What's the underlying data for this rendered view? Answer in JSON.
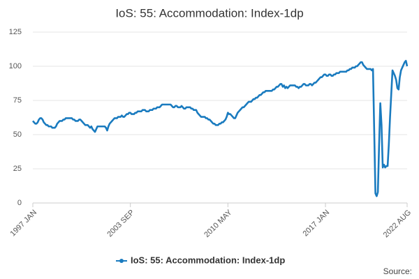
{
  "chart_data": {
    "type": "line",
    "title": "IoS: 55: Accommodation: Index-1dp",
    "source": "Source:",
    "categories": [
      "1997 JAN",
      null,
      null,
      null,
      null,
      null,
      null,
      null,
      null,
      null,
      null,
      null,
      null,
      null,
      null,
      null,
      null,
      null,
      null,
      null,
      null,
      null,
      null,
      null,
      null,
      null,
      null,
      null,
      null,
      null,
      null,
      null,
      null,
      null,
      null,
      null,
      null,
      null,
      null,
      null,
      null,
      null,
      null,
      null,
      null,
      null,
      null,
      null,
      null,
      null,
      null,
      null,
      null,
      null,
      null,
      null,
      null,
      null,
      null,
      null,
      null,
      null,
      null,
      null,
      null,
      null,
      null,
      null,
      null,
      null,
      null,
      null,
      null,
      null,
      null,
      null,
      null,
      null,
      null,
      null,
      "2003 SEP",
      null,
      null,
      null,
      null,
      null,
      null,
      null,
      null,
      null,
      null,
      null,
      null,
      null,
      null,
      null,
      null,
      null,
      null,
      null,
      null,
      null,
      null,
      null,
      null,
      null,
      null,
      null,
      null,
      null,
      null,
      null,
      null,
      null,
      null,
      null,
      null,
      null,
      null,
      null,
      null,
      null,
      null,
      null,
      null,
      null,
      null,
      null,
      null,
      null,
      null,
      null,
      null,
      null,
      null,
      null,
      null,
      null,
      null,
      null,
      null,
      null,
      null,
      null,
      null,
      null,
      null,
      null,
      null,
      null,
      null,
      null,
      null,
      null,
      null,
      null,
      null,
      null,
      null,
      null,
      "2010 MAY",
      null,
      null,
      null,
      null,
      null,
      null,
      null,
      null,
      null,
      null,
      null,
      null,
      null,
      null,
      null,
      null,
      null,
      null,
      null,
      null,
      null,
      null,
      null,
      null,
      null,
      null,
      null,
      null,
      null,
      null,
      null,
      null,
      null,
      null,
      null,
      null,
      null,
      null,
      null,
      null,
      null,
      null,
      null,
      null,
      null,
      null,
      null,
      null,
      null,
      null,
      null,
      null,
      null,
      null,
      null,
      null,
      null,
      null,
      null,
      null,
      null,
      null,
      null,
      null,
      null,
      null,
      null,
      null,
      null,
      null,
      null,
      null,
      null,
      null,
      null,
      null,
      null,
      null,
      null,
      "2017 JAN",
      null,
      null,
      null,
      null,
      null,
      null,
      null,
      null,
      null,
      null,
      null,
      null,
      null,
      null,
      null,
      null,
      null,
      null,
      null,
      null,
      null,
      null,
      null,
      null,
      null,
      null,
      null,
      null,
      null,
      null,
      null,
      null,
      null,
      null,
      null,
      null,
      null,
      null,
      null,
      null,
      null,
      null,
      null,
      null,
      null,
      null,
      null,
      null,
      null,
      null,
      null,
      null,
      null,
      null,
      null,
      null,
      null,
      null,
      null,
      null,
      null,
      null,
      null,
      null,
      null,
      null,
      "2022 AUG"
    ],
    "series": [
      {
        "name": "IoS: 55: Accommodation: Index-1dp",
        "color": "#1a7bbf",
        "values": [
          60,
          59,
          58,
          58,
          59,
          61,
          62,
          62,
          61,
          59,
          58,
          57,
          57,
          56,
          56,
          56,
          55,
          55,
          55,
          56,
          58,
          59,
          60,
          60,
          60,
          61,
          61,
          62,
          62,
          62,
          62,
          62,
          62,
          61,
          61,
          60,
          60,
          60,
          61,
          61,
          60,
          59,
          58,
          57,
          57,
          57,
          56,
          55,
          56,
          54,
          53,
          52,
          54,
          56,
          56,
          56,
          56,
          56,
          56,
          56,
          55,
          53,
          56,
          58,
          59,
          60,
          61,
          62,
          62,
          62,
          63,
          63,
          63,
          64,
          63,
          63,
          64,
          65,
          65,
          66,
          66,
          65,
          65,
          65,
          66,
          66,
          67,
          67,
          67,
          67,
          68,
          68,
          68,
          67,
          67,
          67,
          68,
          68,
          68,
          69,
          69,
          69,
          70,
          70,
          70,
          71,
          72,
          72,
          72,
          72,
          72,
          72,
          72,
          72,
          71,
          70,
          70,
          71,
          71,
          70,
          70,
          70,
          71,
          70,
          69,
          69,
          70,
          70,
          70,
          70,
          69,
          69,
          68,
          68,
          68,
          66,
          65,
          64,
          63,
          63,
          63,
          63,
          62,
          62,
          61,
          61,
          60,
          59,
          58,
          58,
          57,
          57,
          57,
          58,
          58,
          59,
          59,
          60,
          61,
          63,
          66,
          65,
          65,
          64,
          63,
          62,
          62,
          64,
          66,
          67,
          68,
          69,
          70,
          70,
          71,
          72,
          73,
          74,
          74,
          74,
          75,
          76,
          76,
          77,
          77,
          78,
          79,
          79,
          80,
          81,
          81,
          82,
          82,
          82,
          82,
          82,
          82,
          83,
          83,
          84,
          85,
          85,
          86,
          87,
          87,
          85,
          86,
          84,
          85,
          84,
          85,
          86,
          86,
          86,
          86,
          86,
          85,
          85,
          84,
          85,
          85,
          86,
          87,
          87,
          86,
          86,
          86,
          87,
          87,
          86,
          87,
          88,
          88,
          89,
          90,
          91,
          92,
          92,
          93,
          94,
          94,
          93,
          93,
          94,
          94,
          93,
          93,
          94,
          94,
          95,
          95,
          95,
          96,
          96,
          96,
          96,
          96,
          96,
          97,
          97,
          98,
          98,
          99,
          99,
          99,
          100,
          100,
          101,
          102,
          103,
          103,
          101,
          100,
          99,
          98,
          98,
          98,
          98,
          97,
          98,
          53,
          7,
          5,
          8,
          42,
          73,
          57,
          26,
          28,
          26,
          27,
          27,
          43,
          63,
          80,
          97,
          95,
          93,
          90,
          84,
          83,
          92,
          97,
          99,
          101,
          103,
          104,
          100
        ]
      }
    ],
    "ylim": [
      0,
      125
    ],
    "yticks": [
      0,
      25,
      50,
      75,
      100,
      125
    ],
    "grid": true
  }
}
